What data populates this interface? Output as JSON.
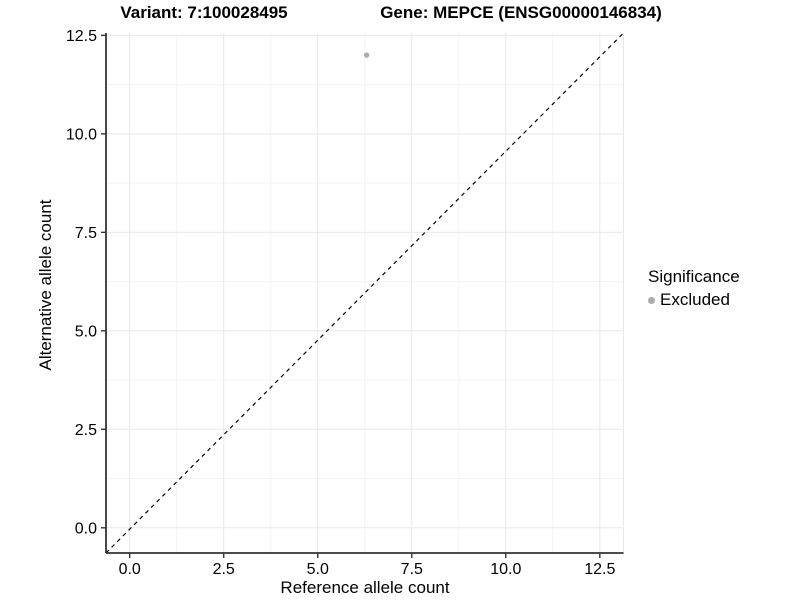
{
  "chart_data": {
    "type": "scatter",
    "title_left": "Variant: 7:100028495",
    "title_right": "Gene: MEPCE (ENSG00000146834)",
    "xlabel": "Reference allele count",
    "ylabel": "Alternative allele count",
    "xlim": [
      -0.63,
      13.13
    ],
    "ylim": [
      -0.64,
      12.56
    ],
    "x_tick_values": [
      0,
      2.5,
      5,
      7.5,
      10,
      12.5
    ],
    "x_tick_labels": [
      "0.0",
      "2.5",
      "5.0",
      "7.5",
      "10.0",
      "12.5"
    ],
    "y_tick_values": [
      0,
      2.5,
      5,
      7.5,
      10,
      12.5
    ],
    "y_tick_labels": [
      "0.0",
      "2.5",
      "5.0",
      "7.5",
      "10.0",
      "12.5"
    ],
    "minor_tick_values": [
      1.25,
      3.75,
      6.25,
      8.75,
      11.25
    ],
    "grid": "major-and-minor",
    "identity_line": {
      "style": "dashed",
      "description": "y = x reference line, corner to corner",
      "color": "#000000"
    },
    "series": [
      {
        "name": "Excluded",
        "color": "#ababab",
        "points": [
          {
            "x": 6.3,
            "y": 12.0
          }
        ]
      }
    ],
    "legend": {
      "title": "Significance",
      "position": "right",
      "items": [
        {
          "label": "Excluded",
          "color": "#ababab"
        }
      ]
    },
    "colors": {
      "background": "#ffffff",
      "major_grid": "#e8e8e8",
      "minor_grid": "#f3f3f3",
      "axis_line": "#333333",
      "tick_text": "#000000",
      "title_text": "#000000"
    }
  }
}
